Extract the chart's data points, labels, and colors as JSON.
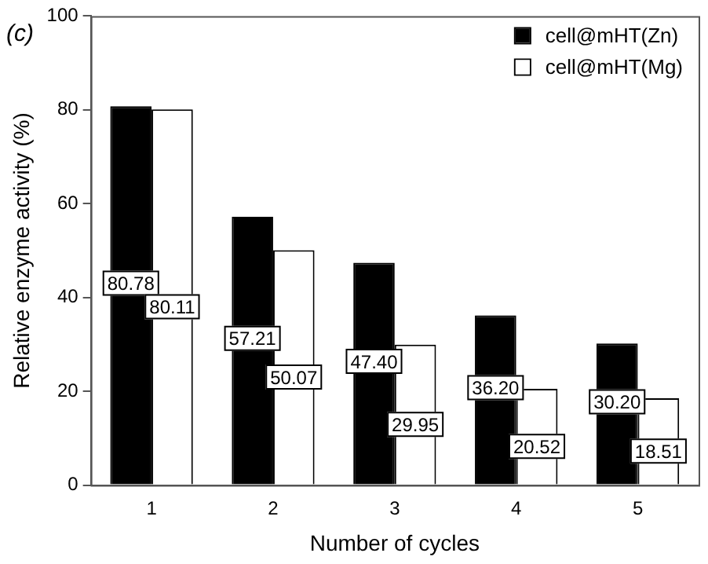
{
  "chart_data": {
    "type": "bar",
    "title": "(c)",
    "xlabel": "Number of cycles",
    "ylabel": "Relative enzyme activity (%)",
    "categories": [
      "1",
      "2",
      "3",
      "4",
      "5"
    ],
    "series": [
      {
        "name": "cell@mHT(Zn)",
        "color": "#000000",
        "values": [
          80.78,
          57.21,
          47.4,
          36.2,
          30.2
        ],
        "value_labels": [
          "80.78",
          "57.21",
          "47.40",
          "36.20",
          "30.20"
        ]
      },
      {
        "name": "cell@mHT(Mg)",
        "color": "#ffffff",
        "values": [
          80.11,
          50.07,
          29.95,
          20.52,
          18.51
        ],
        "value_labels": [
          "80.11",
          "50.07",
          "29.95",
          "20.52",
          "18.51"
        ]
      }
    ],
    "ylim": [
      0,
      100
    ],
    "yticks": [
      0,
      20,
      40,
      60,
      80,
      100
    ],
    "grid": false,
    "legend": "top right",
    "data_labels": true
  }
}
